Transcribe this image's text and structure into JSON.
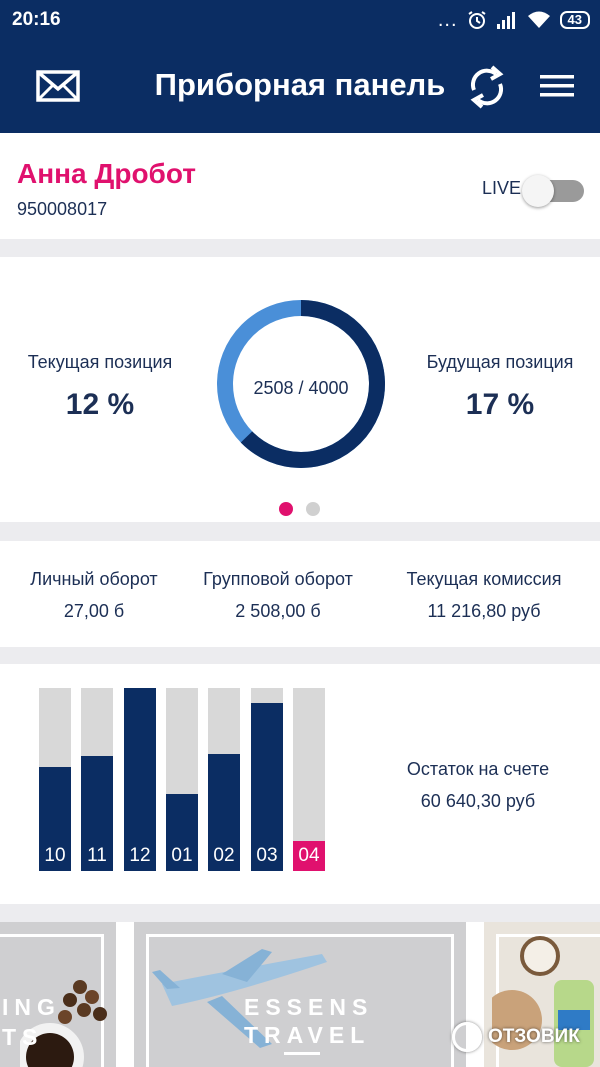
{
  "status_bar": {
    "time": "20:16",
    "dots": "...",
    "battery": "43",
    "icons": [
      "alarm-icon",
      "signal-icon",
      "wifi-icon",
      "battery-icon"
    ]
  },
  "app_bar": {
    "title": "Приборная панель",
    "icons": [
      "mail-icon",
      "refresh-icon",
      "menu-icon"
    ]
  },
  "profile": {
    "name": "Анна Дробот",
    "id": "950008017",
    "live_label": "LIVE",
    "live_on": false
  },
  "positions": {
    "current_label": "Текущая позиция",
    "current_value": "12 %",
    "future_label": "Будущая позиция",
    "future_value": "17 %",
    "progress_text": "2508 / 4000",
    "progress_current": 2508,
    "progress_total": 4000,
    "page_index": 0,
    "page_count": 2
  },
  "turnover": {
    "personal_label": "Личный оборот",
    "personal_value": "27,00 б",
    "group_label": "Групповой оборот",
    "group_value": "2 508,00 б",
    "commission_label": "Текущая комиссия",
    "commission_value": "11 216,80 руб"
  },
  "monthly": {
    "bars": [
      {
        "label": "10",
        "fraction": 0.57,
        "current": false
      },
      {
        "label": "11",
        "fraction": 0.63,
        "current": false
      },
      {
        "label": "12",
        "fraction": 1.0,
        "current": false
      },
      {
        "label": "01",
        "fraction": 0.42,
        "current": false
      },
      {
        "label": "02",
        "fraction": 0.64,
        "current": false
      },
      {
        "label": "03",
        "fraction": 0.92,
        "current": false
      },
      {
        "label": "04",
        "fraction": 0.0,
        "current": true
      }
    ],
    "balance_label": "Остаток на счете",
    "balance_value": "60 640,30 руб"
  },
  "promos": {
    "left_text_1": "ING",
    "left_text_2": "TS",
    "center_text_1": "ESSENS",
    "center_text_2": "TRAVEL"
  },
  "watermark": "ОТЗОВИК",
  "colors": {
    "primary": "#0b2d63",
    "accent": "#e0116e",
    "donut_light": "#4a8fd8",
    "bar_empty": "#d8d8d8"
  }
}
